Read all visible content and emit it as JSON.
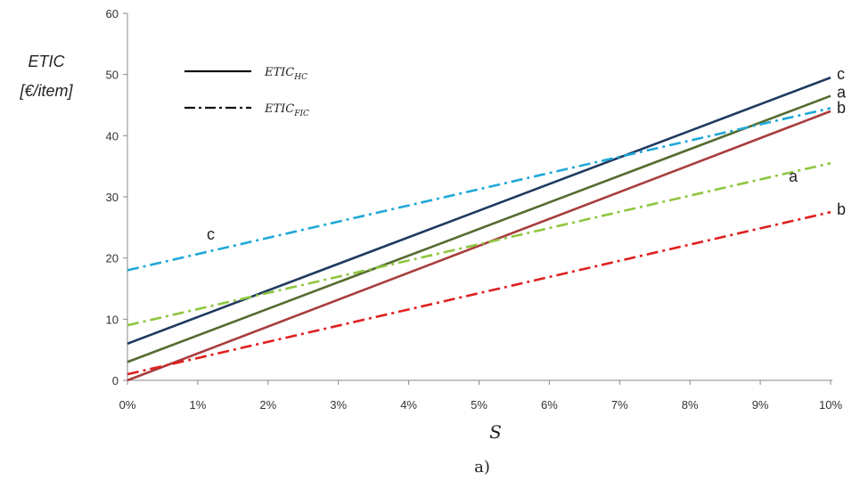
{
  "chart_data": {
    "type": "line",
    "ylabel_line1": "ETIC",
    "ylabel_line2": "[€/item]",
    "xlabel": "S",
    "caption": "a)",
    "ylim": [
      0,
      60
    ],
    "yticks": [
      "0",
      "10",
      "20",
      "30",
      "40",
      "50",
      "60"
    ],
    "x": [
      0,
      10
    ],
    "xticks": [
      "0%",
      "1%",
      "2%",
      "3%",
      "4%",
      "5%",
      "6%",
      "7%",
      "8%",
      "9%",
      "10%"
    ],
    "grid": false,
    "legend_position": "top-left",
    "legend": [
      {
        "main": "ETIC",
        "sub": "HC",
        "style": "solid"
      },
      {
        "main": "ETIC",
        "sub": "FIC",
        "style": "dash-dot"
      }
    ],
    "series": [
      {
        "label": "c",
        "kind": "HC",
        "color": "#1f3a5f",
        "style": "solid",
        "values": [
          6,
          49.5
        ]
      },
      {
        "label": "a",
        "kind": "HC",
        "color": "#556b2f",
        "style": "solid",
        "values": [
          3,
          46.5
        ]
      },
      {
        "label": "b",
        "kind": "HC",
        "color": "#a83c3c",
        "style": "solid",
        "values": [
          0,
          44
        ]
      },
      {
        "label": "c",
        "kind": "FIC",
        "color": "#1fa8d8",
        "style": "dash-dot",
        "values": [
          18,
          44.5
        ]
      },
      {
        "label": "a",
        "kind": "FIC",
        "color": "#8ec63f",
        "style": "dash-dot",
        "values": [
          9,
          35.5
        ]
      },
      {
        "label": "b",
        "kind": "FIC",
        "color": "#e02020",
        "style": "dash-dot",
        "values": [
          1,
          27.5
        ]
      }
    ]
  }
}
